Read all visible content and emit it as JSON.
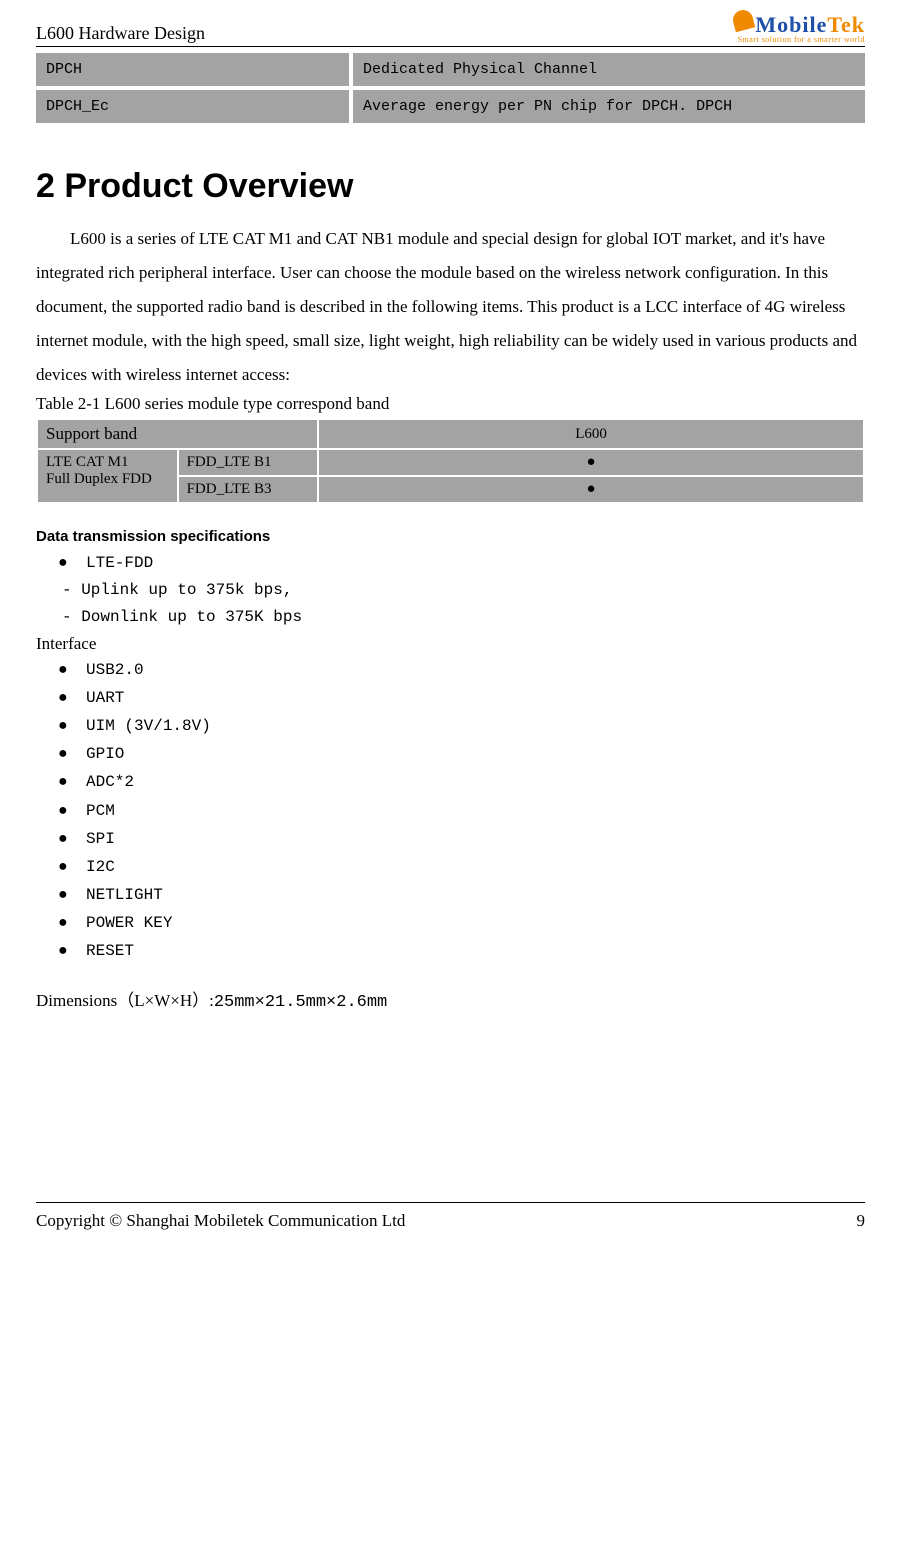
{
  "header": {
    "doc_title": "L600 Hardware Design",
    "logo_brand_parts": {
      "m": "M",
      "obile": "obile",
      "tek": "Tek"
    },
    "logo_tagline": "Smart solution for a smarter world"
  },
  "colors": {
    "table_bg": "#a3a3a3",
    "logo_blue": "#1f4fa8",
    "logo_orange": "#f08a00",
    "rule": "#000000"
  },
  "channels_table": {
    "rows": [
      {
        "abbr": "DPCH",
        "desc": "Dedicated Physical Channel"
      },
      {
        "abbr": "DPCH_Ec",
        "desc": "Average energy per PN chip for DPCH. DPCH"
      }
    ]
  },
  "section": {
    "heading": "2 Product Overview",
    "intro": "L600 is a series of LTE CAT M1 and CAT NB1 module and special design for global IOT market, and it's have integrated rich peripheral interface. User can choose the module based on the wireless network configuration. In this document, the supported radio band is described in the following items. This product is a LCC interface of 4G wireless internet module, with the high speed, small size, light weight, high reliability can be widely used in various products and devices with wireless internet access:"
  },
  "bands_table": {
    "caption": "Table 2-1    L600 series module type correspond band",
    "support_label": "Support band",
    "product_col": "L600",
    "row_group_label_1": "LTE CAT M1",
    "row_group_label_2": "Full Duplex FDD",
    "rows": [
      {
        "band": "FDD_LTE B1",
        "mark": "●"
      },
      {
        "band": "FDD_LTE B3",
        "mark": "●"
      }
    ]
  },
  "data_trans": {
    "title": "Data transmission specifications",
    "mode": "LTE-FDD",
    "uplink": "- Uplink up to 375k bps,",
    "downlink": "- Downlink up to 375K bps"
  },
  "interface": {
    "label": "Interface",
    "items": [
      "USB2.0",
      "UART",
      "UIM (3V/1.8V)",
      "GPIO",
      "ADC*2",
      "PCM",
      "SPI",
      "I2C",
      "NETLIGHT",
      "POWER KEY",
      "RESET"
    ]
  },
  "dimensions": {
    "label": "Dimensions（L×W×H）:",
    "value": "25mm×21.5mm×2.6mm"
  },
  "footer": {
    "copyright": "Copyright  ©  Shanghai  Mobiletek  Communication  Ltd",
    "page": "9"
  }
}
